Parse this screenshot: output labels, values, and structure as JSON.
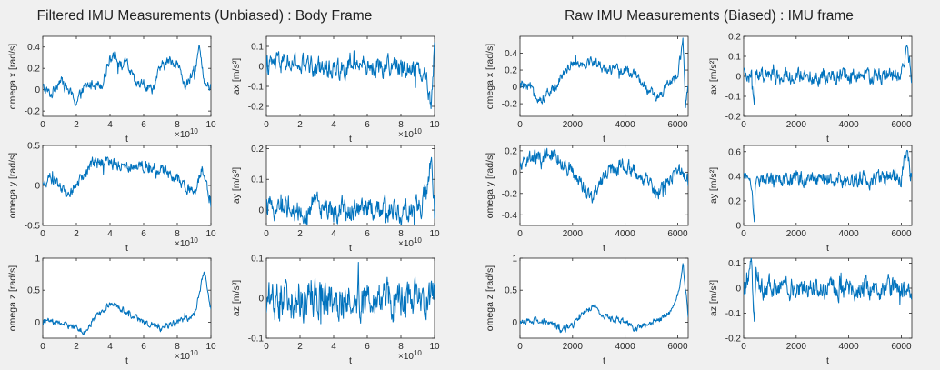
{
  "figure": {
    "titles": [
      "Filtered IMU Measurements (Unbiased) : Body Frame",
      "Raw IMU Measurements (Biased) : IMU frame"
    ],
    "line_color": "#0072bd",
    "background": "#f0f0f0"
  },
  "chart_data": [
    {
      "type": "line",
      "title": "",
      "xlabel": "t",
      "ylabel": "omega x [rad/s]",
      "xlim": [
        0,
        100000000000.0
      ],
      "ylim": [
        -0.25,
        0.5
      ],
      "xticks": [
        0,
        20000000000.0,
        40000000000.0,
        60000000000.0,
        80000000000.0,
        100000000000.0
      ],
      "xtick_labels": [
        "0",
        "2",
        "4",
        "6",
        "8",
        "10"
      ],
      "x_exponent": "×10^10",
      "yticks": [
        -0.2,
        0,
        0.2,
        0.4
      ],
      "ytick_labels": [
        "-0.2",
        "0",
        "0.2",
        "0.4"
      ],
      "x": [
        0,
        5000000000.0,
        10000000000.0,
        15000000000.0,
        20000000000.0,
        25000000000.0,
        30000000000.0,
        35000000000.0,
        40000000000.0,
        43000000000.0,
        46000000000.0,
        50000000000.0,
        55000000000.0,
        60000000000.0,
        65000000000.0,
        70000000000.0,
        75000000000.0,
        80000000000.0,
        85000000000.0,
        90000000000.0,
        93000000000.0,
        96000000000.0,
        100000000000.0
      ],
      "y": [
        0.02,
        -0.05,
        0.1,
        0.0,
        -0.12,
        0.02,
        0.06,
        0.05,
        0.3,
        0.35,
        0.22,
        0.25,
        0.05,
        0.05,
        0.0,
        0.2,
        0.27,
        0.25,
        0.03,
        0.15,
        0.4,
        0.05,
        0.02
      ],
      "noise": 0.04
    },
    {
      "type": "line",
      "title": "",
      "xlabel": "t",
      "ylabel": "ax [m/s^2]",
      "xlim": [
        0,
        100000000000.0
      ],
      "ylim": [
        -0.25,
        0.15
      ],
      "xticks": [
        0,
        20000000000.0,
        40000000000.0,
        60000000000.0,
        80000000000.0,
        100000000000.0
      ],
      "xtick_labels": [
        "0",
        "2",
        "4",
        "6",
        "8",
        "10"
      ],
      "x_exponent": "×10^10",
      "yticks": [
        -0.2,
        -0.1,
        0,
        0.1
      ],
      "ytick_labels": [
        "-0.2",
        "-0.1",
        "0",
        "0.1"
      ],
      "x": [
        0,
        5000000000.0,
        10000000000.0,
        20000000000.0,
        30000000000.0,
        40000000000.0,
        50000000000.0,
        60000000000.0,
        70000000000.0,
        80000000000.0,
        90000000000.0,
        95000000000.0,
        98000000000.0,
        100000000000.0
      ],
      "y": [
        0.0,
        0.01,
        0.02,
        0.0,
        0.0,
        -0.01,
        0.0,
        0.0,
        0.0,
        0.0,
        0.0,
        -0.05,
        -0.2,
        0.1
      ],
      "noise": 0.04
    },
    {
      "type": "line",
      "title": "",
      "xlabel": "t",
      "ylabel": "omega x [rad/s]",
      "xlim": [
        0,
        6400
      ],
      "ylim": [
        -0.35,
        0.6
      ],
      "xticks": [
        0,
        2000,
        4000,
        6000
      ],
      "xtick_labels": [
        "0",
        "2000",
        "4000",
        "6000"
      ],
      "x_exponent": "",
      "yticks": [
        -0.2,
        0,
        0.2,
        0.4
      ],
      "ytick_labels": [
        "-0.2",
        "0",
        "0.2",
        "0.4"
      ],
      "x": [
        0,
        400,
        800,
        1200,
        1600,
        2000,
        2400,
        2800,
        3200,
        3600,
        4000,
        4400,
        4800,
        5200,
        5600,
        6000,
        6200,
        6300,
        6400
      ],
      "y": [
        0.02,
        -0.02,
        -0.15,
        -0.05,
        0.15,
        0.3,
        0.28,
        0.3,
        0.22,
        0.2,
        0.18,
        0.15,
        0.0,
        -0.15,
        0.0,
        0.15,
        0.55,
        -0.2,
        0.02
      ],
      "noise": 0.05
    },
    {
      "type": "line",
      "title": "",
      "xlabel": "t",
      "ylabel": "ax [m/s^2]",
      "xlim": [
        0,
        6400
      ],
      "ylim": [
        -0.2,
        0.2
      ],
      "xticks": [
        0,
        2000,
        4000,
        6000
      ],
      "xtick_labels": [
        "0",
        "2000",
        "4000",
        "6000"
      ],
      "x_exponent": "",
      "yticks": [
        -0.2,
        -0.1,
        0,
        0.1,
        0.2
      ],
      "ytick_labels": [
        "-0.2",
        "-0.1",
        "0",
        "0.1",
        "0.2"
      ],
      "x": [
        0,
        300,
        400,
        450,
        800,
        2000,
        4000,
        6000,
        6200,
        6400
      ],
      "y": [
        0.0,
        0.0,
        -0.18,
        0.02,
        0.0,
        0.0,
        0.0,
        0.0,
        0.15,
        0.0
      ],
      "noise": 0.03
    },
    {
      "type": "line",
      "title": "",
      "xlabel": "t",
      "ylabel": "omega y [rad/s]",
      "xlim": [
        0,
        100000000000.0
      ],
      "ylim": [
        -0.5,
        0.5
      ],
      "xticks": [
        0,
        20000000000.0,
        40000000000.0,
        60000000000.0,
        80000000000.0,
        100000000000.0
      ],
      "xtick_labels": [
        "0",
        "2",
        "4",
        "6",
        "8",
        "10"
      ],
      "x_exponent": "×10^10",
      "yticks": [
        -0.5,
        0,
        0.5
      ],
      "ytick_labels": [
        "-0.5",
        "0",
        "0.5"
      ],
      "x": [
        0,
        5000000000.0,
        10000000000.0,
        15000000000.0,
        20000000000.0,
        25000000000.0,
        30000000000.0,
        40000000000.0,
        50000000000.0,
        60000000000.0,
        70000000000.0,
        80000000000.0,
        85000000000.0,
        90000000000.0,
        95000000000.0,
        100000000000.0
      ],
      "y": [
        0.0,
        0.1,
        -0.05,
        -0.1,
        0.0,
        0.15,
        0.3,
        0.28,
        0.25,
        0.25,
        0.2,
        0.1,
        0.0,
        -0.1,
        0.25,
        -0.3
      ],
      "noise": 0.06
    },
    {
      "type": "line",
      "title": "",
      "xlabel": "t",
      "ylabel": "ay [m/s^2]",
      "xlim": [
        0,
        100000000000.0
      ],
      "ylim": [
        -0.05,
        0.21
      ],
      "xticks": [
        0,
        20000000000.0,
        40000000000.0,
        60000000000.0,
        80000000000.0,
        100000000000.0
      ],
      "xtick_labels": [
        "0",
        "2",
        "4",
        "6",
        "8",
        "10"
      ],
      "x_exponent": "×10^10",
      "yticks": [
        0,
        0.1,
        0.2
      ],
      "ytick_labels": [
        "0",
        "0.1",
        "0.2"
      ],
      "x": [
        0,
        10000000000.0,
        20000000000.0,
        30000000000.0,
        40000000000.0,
        50000000000.0,
        60000000000.0,
        70000000000.0,
        80000000000.0,
        90000000000.0,
        95000000000.0,
        98000000000.0,
        100000000000.0
      ],
      "y": [
        0.0,
        0.02,
        0.0,
        0.01,
        0.0,
        0.0,
        0.01,
        0.0,
        0.0,
        0.0,
        0.05,
        0.18,
        -0.02
      ],
      "noise": 0.03
    },
    {
      "type": "line",
      "title": "",
      "xlabel": "t",
      "ylabel": "omega y [rad/s]",
      "xlim": [
        0,
        6400
      ],
      "ylim": [
        -0.5,
        0.25
      ],
      "xticks": [
        0,
        2000,
        4000,
        6000
      ],
      "xtick_labels": [
        "0",
        "2000",
        "4000",
        "6000"
      ],
      "x_exponent": "",
      "yticks": [
        -0.4,
        -0.2,
        0,
        0.2
      ],
      "ytick_labels": [
        "-0.4",
        "-0.2",
        "0",
        "0.2"
      ],
      "x": [
        0,
        400,
        800,
        1200,
        1600,
        2000,
        2400,
        2800,
        3200,
        3600,
        4000,
        4400,
        4800,
        5200,
        5600,
        6000,
        6400
      ],
      "y": [
        0.05,
        0.15,
        0.1,
        0.18,
        0.1,
        0.0,
        -0.15,
        -0.25,
        -0.05,
        0.05,
        0.05,
        0.0,
        -0.1,
        -0.2,
        -0.1,
        0.05,
        -0.1
      ],
      "noise": 0.06
    },
    {
      "type": "line",
      "title": "",
      "xlabel": "t",
      "ylabel": "ay [m/s^2]",
      "xlim": [
        0,
        6400
      ],
      "ylim": [
        0,
        0.65
      ],
      "xticks": [
        0,
        2000,
        4000,
        6000
      ],
      "xtick_labels": [
        "0",
        "2000",
        "4000",
        "6000"
      ],
      "x_exponent": "",
      "yticks": [
        0,
        0.2,
        0.4,
        0.6
      ],
      "ytick_labels": [
        "0",
        "0.2",
        "0.4",
        "0.6"
      ],
      "x": [
        0,
        300,
        400,
        450,
        1000,
        2000,
        3000,
        4000,
        5000,
        6000,
        6200,
        6400
      ],
      "y": [
        0.38,
        0.35,
        0.05,
        0.38,
        0.37,
        0.38,
        0.38,
        0.38,
        0.38,
        0.4,
        0.6,
        0.38
      ],
      "noise": 0.05
    },
    {
      "type": "line",
      "title": "",
      "xlabel": "t",
      "ylabel": "omega z [rad/s]",
      "xlim": [
        0,
        100000000000.0
      ],
      "ylim": [
        -0.25,
        1
      ],
      "xticks": [
        0,
        20000000000.0,
        40000000000.0,
        60000000000.0,
        80000000000.0,
        100000000000.0
      ],
      "xtick_labels": [
        "0",
        "2",
        "4",
        "6",
        "8",
        "10"
      ],
      "x_exponent": "×10^10",
      "yticks": [
        0,
        0.5,
        1
      ],
      "ytick_labels": [
        "0",
        "0.5",
        "1"
      ],
      "x": [
        0,
        10000000000.0,
        20000000000.0,
        25000000000.0,
        30000000000.0,
        40000000000.0,
        45000000000.0,
        50000000000.0,
        60000000000.0,
        70000000000.0,
        80000000000.0,
        85000000000.0,
        90000000000.0,
        93000000000.0,
        96000000000.0,
        100000000000.0
      ],
      "y": [
        0.02,
        0.0,
        -0.08,
        -0.15,
        0.05,
        0.3,
        0.25,
        0.15,
        0.0,
        -0.1,
        0.0,
        0.05,
        0.1,
        0.45,
        0.8,
        0.2
      ],
      "noise": 0.04
    },
    {
      "type": "line",
      "title": "",
      "xlabel": "t",
      "ylabel": "az [m/s^2]",
      "xlim": [
        0,
        100000000000.0
      ],
      "ylim": [
        -0.1,
        0.1
      ],
      "xticks": [
        0,
        20000000000.0,
        40000000000.0,
        60000000000.0,
        80000000000.0,
        100000000000.0
      ],
      "xtick_labels": [
        "0",
        "2",
        "4",
        "6",
        "8",
        "10"
      ],
      "x_exponent": "×10^10",
      "yticks": [
        -0.1,
        0,
        0.1
      ],
      "ytick_labels": [
        "-0.1",
        "0",
        "0.1"
      ],
      "x": [
        0,
        20000000000.0,
        40000000000.0,
        60000000000.0,
        80000000000.0,
        100000000000.0
      ],
      "y": [
        0.0,
        0.0,
        0.0,
        0.0,
        0.0,
        0.0
      ],
      "noise": 0.04
    },
    {
      "type": "line",
      "title": "",
      "xlabel": "t",
      "ylabel": "omega z [rad/s]",
      "xlim": [
        0,
        6400
      ],
      "ylim": [
        -0.25,
        1
      ],
      "xticks": [
        0,
        2000,
        4000,
        6000
      ],
      "xtick_labels": [
        "0",
        "2000",
        "4000",
        "6000"
      ],
      "x_exponent": "",
      "yticks": [
        0,
        0.5,
        1
      ],
      "ytick_labels": [
        "0",
        "0.5",
        "1"
      ],
      "x": [
        0,
        600,
        1200,
        1600,
        2000,
        2400,
        2800,
        3200,
        3600,
        4000,
        4400,
        5000,
        5600,
        6000,
        6200,
        6400
      ],
      "y": [
        0.0,
        0.02,
        0.0,
        -0.12,
        -0.05,
        0.15,
        0.25,
        0.1,
        0.05,
        0.0,
        -0.1,
        0.0,
        0.1,
        0.4,
        0.9,
        0.1
      ],
      "noise": 0.04
    },
    {
      "type": "line",
      "title": "",
      "xlabel": "t",
      "ylabel": "az [m/s^2]",
      "xlim": [
        0,
        6400
      ],
      "ylim": [
        -0.2,
        0.12
      ],
      "xticks": [
        0,
        2000,
        4000,
        6000
      ],
      "xtick_labels": [
        "0",
        "2000",
        "4000",
        "6000"
      ],
      "x_exponent": "",
      "yticks": [
        -0.2,
        -0.1,
        0,
        0.1
      ],
      "ytick_labels": [
        "-0.2",
        "-0.1",
        "0",
        "0.1"
      ],
      "x": [
        0,
        300,
        400,
        500,
        700,
        1500,
        3000,
        4500,
        6000,
        6200,
        6400
      ],
      "y": [
        0.0,
        0.08,
        -0.12,
        0.05,
        0.0,
        0.0,
        0.0,
        0.0,
        0.0,
        -0.05,
        0.0
      ],
      "noise": 0.035
    }
  ]
}
